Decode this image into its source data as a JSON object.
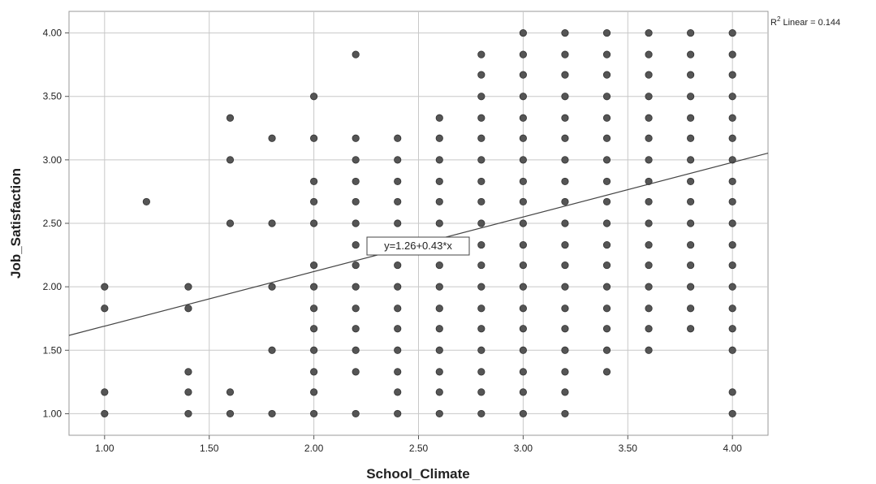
{
  "chart_data": {
    "type": "scatter",
    "title": "",
    "xlabel": "School_Climate",
    "ylabel": "Job_Satisfaction",
    "xlim": [
      0.83,
      4.17
    ],
    "ylim": [
      0.83,
      4.17
    ],
    "grid": true,
    "x_ticks": [
      "1.00",
      "1.50",
      "2.00",
      "2.50",
      "3.00",
      "3.50",
      "4.00"
    ],
    "y_ticks": [
      "1.00",
      "1.50",
      "2.00",
      "2.50",
      "3.00",
      "3.50",
      "4.00"
    ],
    "fit_line": {
      "intercept": 1.26,
      "slope": 0.43,
      "label": "y=1.26+0.43*x"
    },
    "r2": {
      "prefix": "R",
      "superscript": "2",
      "label": " Linear = 0.144"
    },
    "marker_color": "#555555",
    "points": [
      {
        "x": 1.0,
        "ys": [
          1.0,
          1.17,
          1.83,
          2.0
        ]
      },
      {
        "x": 1.2,
        "ys": [
          2.67
        ]
      },
      {
        "x": 1.4,
        "ys": [
          1.0,
          1.17,
          1.33,
          1.83,
          2.0
        ]
      },
      {
        "x": 1.6,
        "ys": [
          1.0,
          1.17,
          2.5,
          3.0,
          3.33
        ]
      },
      {
        "x": 1.8,
        "ys": [
          1.0,
          1.5,
          2.0,
          2.5,
          3.17
        ]
      },
      {
        "x": 2.0,
        "ys": [
          1.0,
          1.17,
          1.33,
          1.5,
          1.67,
          1.83,
          2.0,
          2.17,
          2.5,
          2.67,
          2.83,
          3.17,
          3.5
        ]
      },
      {
        "x": 2.2,
        "ys": [
          1.0,
          1.33,
          1.5,
          1.67,
          1.83,
          2.0,
          2.17,
          2.33,
          2.5,
          2.67,
          2.83,
          3.0,
          3.17,
          3.83
        ]
      },
      {
        "x": 2.4,
        "ys": [
          1.0,
          1.17,
          1.33,
          1.5,
          1.67,
          1.83,
          2.0,
          2.17,
          2.5,
          2.67,
          2.83,
          3.0,
          3.17
        ]
      },
      {
        "x": 2.6,
        "ys": [
          1.0,
          1.17,
          1.33,
          1.5,
          1.67,
          1.83,
          2.0,
          2.17,
          2.33,
          2.5,
          2.67,
          2.83,
          3.0,
          3.17,
          3.33
        ]
      },
      {
        "x": 2.8,
        "ys": [
          1.0,
          1.17,
          1.33,
          1.5,
          1.67,
          1.83,
          2.0,
          2.17,
          2.33,
          2.5,
          2.67,
          2.83,
          3.0,
          3.17,
          3.33,
          3.5,
          3.67,
          3.83
        ]
      },
      {
        "x": 3.0,
        "ys": [
          1.0,
          1.17,
          1.33,
          1.5,
          1.67,
          1.83,
          2.0,
          2.17,
          2.33,
          2.5,
          2.67,
          2.83,
          3.0,
          3.17,
          3.33,
          3.5,
          3.67,
          3.83,
          4.0
        ]
      },
      {
        "x": 3.2,
        "ys": [
          1.0,
          1.17,
          1.33,
          1.5,
          1.67,
          1.83,
          2.0,
          2.17,
          2.33,
          2.5,
          2.67,
          2.83,
          3.0,
          3.17,
          3.33,
          3.5,
          3.67,
          3.83,
          4.0
        ]
      },
      {
        "x": 3.4,
        "ys": [
          1.33,
          1.5,
          1.67,
          1.83,
          2.0,
          2.17,
          2.33,
          2.5,
          2.67,
          2.83,
          3.0,
          3.17,
          3.33,
          3.5,
          3.67,
          3.83,
          4.0
        ]
      },
      {
        "x": 3.6,
        "ys": [
          1.5,
          1.67,
          1.83,
          2.0,
          2.17,
          2.33,
          2.5,
          2.67,
          2.83,
          3.0,
          3.17,
          3.33,
          3.5,
          3.67,
          3.83,
          4.0
        ]
      },
      {
        "x": 3.8,
        "ys": [
          1.67,
          1.83,
          2.0,
          2.17,
          2.33,
          2.5,
          2.67,
          2.83,
          3.0,
          3.17,
          3.33,
          3.5,
          3.67,
          3.83,
          4.0
        ]
      },
      {
        "x": 4.0,
        "ys": [
          1.0,
          1.17,
          1.5,
          1.67,
          1.83,
          2.0,
          2.17,
          2.33,
          2.5,
          2.67,
          2.83,
          3.0,
          3.17,
          3.33,
          3.5,
          3.67,
          3.83,
          4.0
        ]
      }
    ]
  }
}
